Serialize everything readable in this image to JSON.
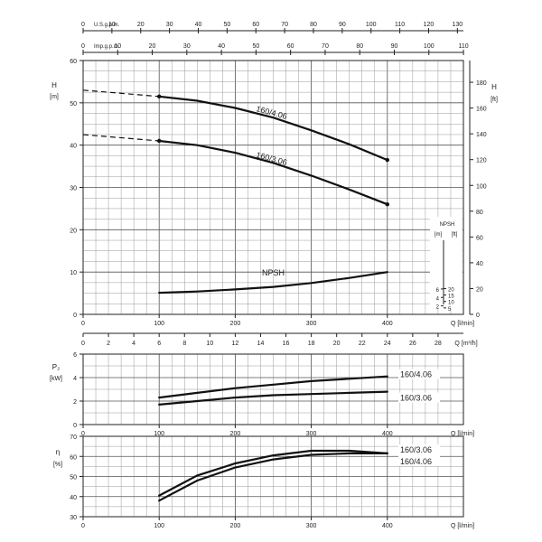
{
  "chart_data": [
    {
      "type": "line",
      "panel": "head",
      "x_axis": {
        "label": "Q [l/min]",
        "ticks": [
          0,
          100,
          200,
          300,
          400
        ]
      },
      "y_left": {
        "label": "H [m]",
        "range": [
          0,
          60
        ],
        "ticks": [
          0,
          10,
          20,
          30,
          40,
          50,
          60
        ]
      },
      "y_right": {
        "label": "H [ft]",
        "ticks": [
          0,
          20,
          40,
          60,
          80,
          100,
          120,
          140,
          160,
          180
        ]
      },
      "top_axis_us": {
        "label": "U.S.g.p.m.",
        "ticks": [
          0,
          10,
          20,
          30,
          40,
          50,
          60,
          70,
          80,
          90,
          100,
          110,
          120,
          130
        ]
      },
      "top_axis_imp": {
        "label": "Imp.g.p.m.",
        "ticks": [
          0,
          10,
          20,
          30,
          40,
          50,
          60,
          70,
          80,
          90,
          100,
          110
        ]
      },
      "npsh_axis": {
        "title": "NPSH",
        "unit_m": "[m]",
        "unit_ft": "[ft]",
        "ticks_m": [
          2,
          4,
          6
        ],
        "ticks_ft": [
          5,
          10,
          15,
          20
        ]
      },
      "series": [
        {
          "name": "160/4.06",
          "x": [
            0,
            100,
            150,
            200,
            250,
            300,
            350,
            400
          ],
          "y": [
            53,
            51.5,
            50.5,
            48.8,
            46.5,
            43.5,
            40.2,
            36.5
          ],
          "dashed_until": 100
        },
        {
          "name": "160/3.06",
          "x": [
            0,
            100,
            150,
            200,
            250,
            300,
            350,
            400
          ],
          "y": [
            42.5,
            41,
            40,
            38.2,
            35.8,
            32.8,
            29.5,
            26
          ],
          "dashed_until": 100
        },
        {
          "name": "NPSH",
          "x": [
            100,
            150,
            200,
            250,
            300,
            350,
            400
          ],
          "y": [
            5.1,
            5.4,
            5.9,
            6.5,
            7.4,
            8.6,
            10
          ]
        }
      ]
    },
    {
      "type": "line",
      "panel": "power",
      "x_axis": {
        "label": "Q [l/min]",
        "ticks": [
          0,
          100,
          200,
          300,
          400
        ]
      },
      "top_axis": {
        "label": "Q [m³/h]",
        "ticks": [
          0,
          2,
          4,
          6,
          8,
          10,
          12,
          14,
          16,
          18,
          20,
          22,
          24,
          26,
          28
        ]
      },
      "y_axis": {
        "label": "P₂",
        "unit": "[kW]",
        "range": [
          0,
          6
        ],
        "ticks": [
          0,
          2,
          4,
          6
        ]
      },
      "series": [
        {
          "name": "160/4.06",
          "x": [
            100,
            150,
            200,
            250,
            300,
            350,
            400
          ],
          "y": [
            2.3,
            2.7,
            3.1,
            3.4,
            3.7,
            3.9,
            4.1
          ]
        },
        {
          "name": "160/3.06",
          "x": [
            100,
            150,
            200,
            250,
            300,
            350,
            400
          ],
          "y": [
            1.7,
            2.0,
            2.3,
            2.5,
            2.6,
            2.7,
            2.8
          ]
        }
      ]
    },
    {
      "type": "line",
      "panel": "efficiency",
      "x_axis": {
        "label": "Q [l/min]",
        "ticks": [
          0,
          100,
          200,
          300,
          400
        ]
      },
      "y_axis": {
        "label": "η",
        "unit": "[%]",
        "range": [
          30,
          70
        ],
        "ticks": [
          30,
          40,
          50,
          60,
          70
        ]
      },
      "series": [
        {
          "name": "160/3.06",
          "x": [
            100,
            150,
            200,
            250,
            300,
            350,
            400
          ],
          "y": [
            40.5,
            50.5,
            56.5,
            60.5,
            62.8,
            62.8,
            61.5
          ]
        },
        {
          "name": "160/4.06",
          "x": [
            100,
            150,
            200,
            250,
            300,
            350,
            400
          ],
          "y": [
            38,
            48,
            54.5,
            58.5,
            60.8,
            61.5,
            61.5
          ]
        }
      ]
    }
  ]
}
